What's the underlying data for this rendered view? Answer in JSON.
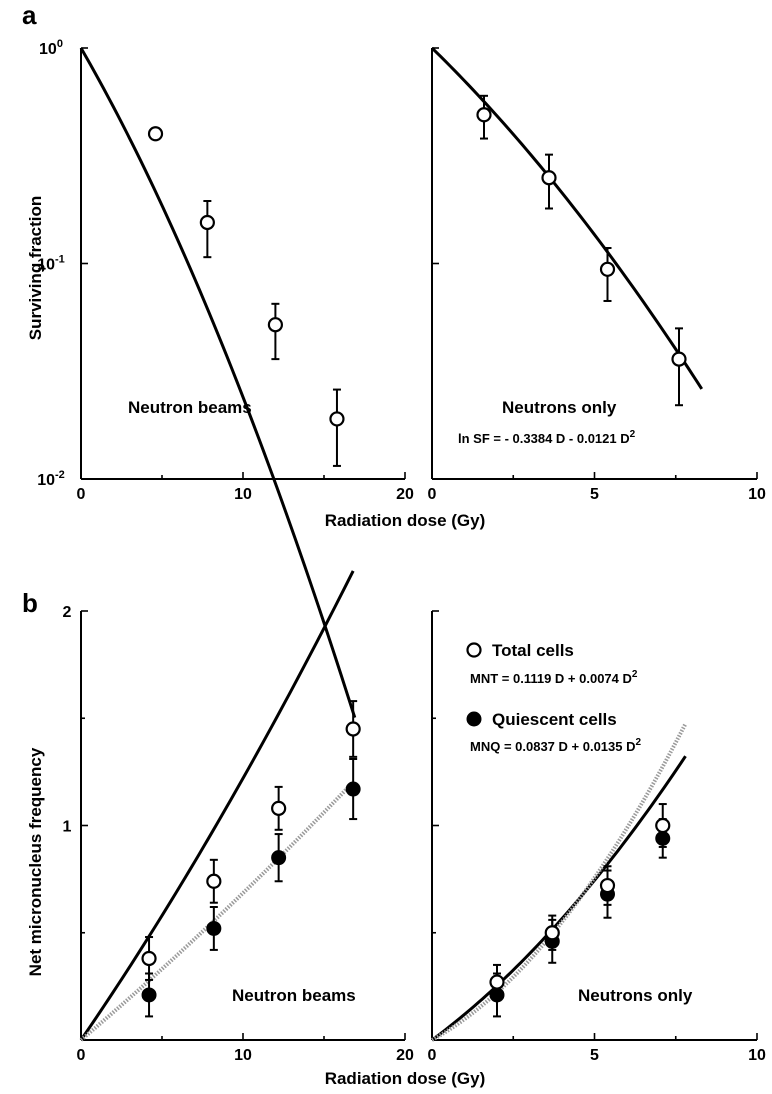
{
  "chart_data": [
    {
      "panel": "a",
      "type": "scatter",
      "annotation": "Neutron beams",
      "xlabel": "Radiation dose (Gy)",
      "ylabel": "Surviving fraction",
      "xlim": [
        0,
        20
      ],
      "ylim": [
        0.01,
        1
      ],
      "yscale": "log",
      "x_ticks": [
        "0",
        "10",
        "20"
      ],
      "y_ticks": [
        {
          "base": "10",
          "exp": "0"
        },
        {
          "base": "10",
          "exp": "-1"
        },
        {
          "base": "10",
          "exp": "-2"
        }
      ],
      "series": [
        {
          "marker": "open-circle",
          "x": [
            4.6,
            7.8,
            12.0,
            15.8
          ],
          "y": [
            0.4,
            0.155,
            0.052,
            0.019
          ],
          "err_up": [
            0.0,
            0.04,
            0.013,
            0.007
          ],
          "err_down": [
            0.0,
            0.048,
            0.016,
            0.0075
          ]
        }
      ],
      "fit": {
        "alpha": 0.3,
        "beta": 0.0073,
        "x_range": [
          0,
          16.9
        ]
      }
    },
    {
      "panel": "a-right",
      "type": "scatter",
      "annotation": "Neutrons only",
      "equation": {
        "prefix": "ln SF = - 0.3384 D - 0.0121 D",
        "sup": "2"
      },
      "xlim": [
        0,
        10
      ],
      "ylim": [
        0.01,
        1
      ],
      "yscale": "log",
      "x_ticks": [
        "0",
        "5",
        "10"
      ],
      "series": [
        {
          "marker": "open-circle",
          "x": [
            1.6,
            3.6,
            5.4,
            7.6
          ],
          "y": [
            0.49,
            0.25,
            0.094,
            0.036
          ],
          "err_up": [
            0.11,
            0.07,
            0.024,
            0.014
          ],
          "err_down": [
            0.11,
            0.07,
            0.027,
            0.014
          ]
        }
      ],
      "fit": {
        "alpha": 0.3384,
        "beta": 0.0121,
        "x_range": [
          0,
          8.3
        ]
      }
    },
    {
      "panel": "b",
      "type": "scatter",
      "annotation": "Neutron beams",
      "xlabel": "Radiation dose (Gy)",
      "ylabel": "Net micronucleus frequency",
      "xlim": [
        0,
        20
      ],
      "ylim": [
        0,
        2
      ],
      "x_ticks": [
        "0",
        "10",
        "20"
      ],
      "y_ticks": [
        "1",
        "2"
      ],
      "series": [
        {
          "marker": "open-circle",
          "x": [
            4.2,
            8.2,
            12.2,
            16.8
          ],
          "y": [
            0.38,
            0.74,
            1.08,
            1.45
          ],
          "err": [
            0.1,
            0.1,
            0.1,
            0.13
          ],
          "fit": {
            "a": 0.11,
            "b": 0.0012,
            "x_range": [
              0,
              16.8
            ],
            "style": "solid"
          }
        },
        {
          "marker": "filled-circle",
          "x": [
            4.2,
            8.2,
            12.2,
            16.8
          ],
          "y": [
            0.21,
            0.52,
            0.85,
            1.17
          ],
          "err": [
            0.1,
            0.1,
            0.11,
            0.14
          ],
          "fit": {
            "a": 0.064,
            "b": 0.00045,
            "x_range": [
              0,
              16.8
            ],
            "style": "dotted"
          }
        }
      ]
    },
    {
      "panel": "b-right",
      "type": "scatter",
      "annotation": "Neutrons only",
      "xlim": [
        0,
        10
      ],
      "ylim": [
        0,
        2
      ],
      "x_ticks": [
        "0",
        "5",
        "10"
      ],
      "legend": [
        {
          "label": "Total cells",
          "marker": "open-circle",
          "equation": {
            "prefix": "MNT = 0.1119 D + 0.0074 D",
            "sup": "2"
          }
        },
        {
          "label": "Quiescent cells",
          "marker": "filled-circle",
          "equation": {
            "prefix": "MNQ = 0.0837 D + 0.0135 D",
            "sup": "2"
          }
        }
      ],
      "series": [
        {
          "name": "Total cells",
          "marker": "open-circle",
          "x": [
            2.0,
            3.7,
            5.4,
            7.1
          ],
          "y": [
            0.27,
            0.5,
            0.72,
            1.0
          ],
          "err": [
            0.08,
            0.08,
            0.09,
            0.1
          ],
          "fit": {
            "a": 0.1119,
            "b": 0.0074,
            "x_range": [
              0,
              7.8
            ],
            "style": "solid"
          }
        },
        {
          "name": "Quiescent cells",
          "marker": "filled-circle",
          "x": [
            2.0,
            3.7,
            5.4,
            7.1
          ],
          "y": [
            0.21,
            0.46,
            0.68,
            0.94
          ],
          "err": [
            0.1,
            0.1,
            0.11,
            0.09
          ],
          "fit": {
            "a": 0.0837,
            "b": 0.0135,
            "x_range": [
              0,
              7.8
            ],
            "style": "dotted"
          }
        }
      ]
    }
  ],
  "panel_labels": {
    "a": "a",
    "b": "b"
  }
}
